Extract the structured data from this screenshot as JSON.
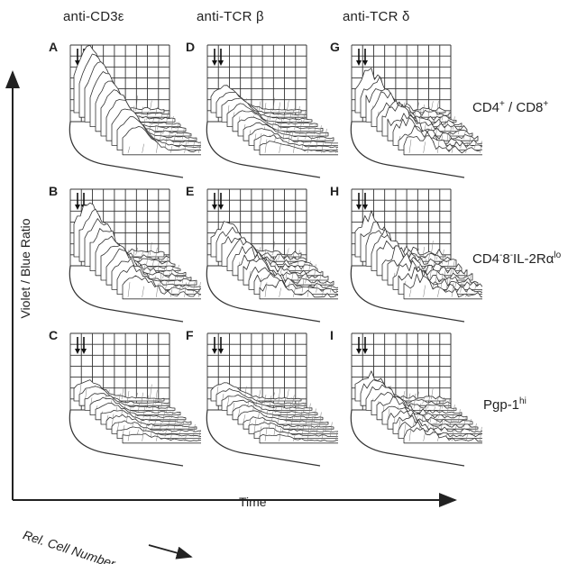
{
  "columns": [
    {
      "label": "anti-CD3ε"
    },
    {
      "label": "anti-TCR β"
    },
    {
      "label": "anti-TCR δ"
    }
  ],
  "rows": [
    {
      "label_main": "CD4",
      "label_sup1": "+",
      "label_mid": " / CD8",
      "label_sup2": "+",
      "label_tail": ""
    },
    {
      "label_main": "CD4",
      "label_sup1": "-",
      "label_mid": "8",
      "label_sup2": "-",
      "label_tail": "IL-2Rα",
      "label_sup3": "lo"
    },
    {
      "label_main": "Pgp-1",
      "label_sup1": "hi",
      "label_mid": "",
      "label_sup2": "",
      "label_tail": ""
    }
  ],
  "panels": [
    "A",
    "D",
    "G",
    "B",
    "E",
    "H",
    "C",
    "F",
    "I"
  ],
  "axes": {
    "y": "Violet / Blue Ratio",
    "x": "Time",
    "z": "Rel. Cell Number"
  }
}
